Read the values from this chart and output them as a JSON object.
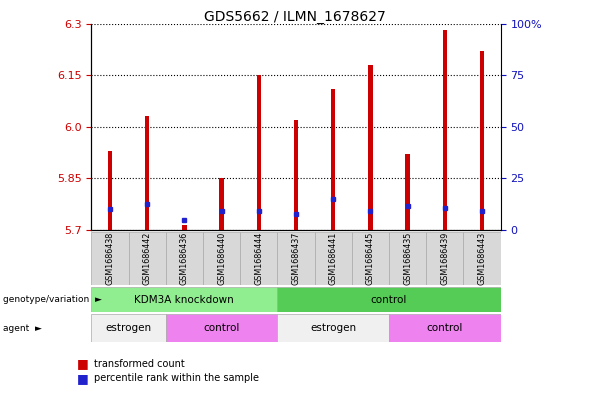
{
  "title": "GDS5662 / ILMN_1678627",
  "samples": [
    "GSM1686438",
    "GSM1686442",
    "GSM1686436",
    "GSM1686440",
    "GSM1686444",
    "GSM1686437",
    "GSM1686441",
    "GSM1686445",
    "GSM1686435",
    "GSM1686439",
    "GSM1686443"
  ],
  "red_values": [
    5.93,
    6.03,
    5.715,
    5.85,
    6.15,
    6.02,
    6.11,
    6.18,
    5.92,
    6.28,
    6.22
  ],
  "blue_values": [
    5.76,
    5.775,
    5.73,
    5.755,
    5.755,
    5.745,
    5.79,
    5.755,
    5.77,
    5.765,
    5.755
  ],
  "ymin": 5.7,
  "ymax": 6.3,
  "yticks_left": [
    5.7,
    5.85,
    6.0,
    6.15,
    6.3
  ],
  "yticks_right": [
    0,
    25,
    50,
    75,
    100
  ],
  "ytick_labels_right": [
    "0",
    "25",
    "50",
    "75",
    "100%"
  ],
  "bar_color": "#cc0000",
  "blue_color": "#2222cc",
  "bar_width": 0.12,
  "genotype_groups": [
    {
      "label": "KDM3A knockdown",
      "start": 0,
      "end": 5,
      "color": "#90EE90"
    },
    {
      "label": "control",
      "start": 5,
      "end": 11,
      "color": "#55CC55"
    }
  ],
  "agent_labels": [
    "estrogen",
    "control",
    "estrogen",
    "control"
  ],
  "agent_ranges": [
    [
      0,
      2
    ],
    [
      2,
      5
    ],
    [
      5,
      8
    ],
    [
      8,
      11
    ]
  ],
  "agent_colors": [
    "#f0f0f0",
    "#EE82EE",
    "#f0f0f0",
    "#EE82EE"
  ],
  "legend_items": [
    {
      "label": "transformed count",
      "color": "#cc0000"
    },
    {
      "label": "percentile rank within the sample",
      "color": "#2222cc"
    }
  ],
  "tick_color_left": "#cc0000",
  "tick_color_right": "#1111bb",
  "grid_color": "black",
  "bg_color": "white"
}
